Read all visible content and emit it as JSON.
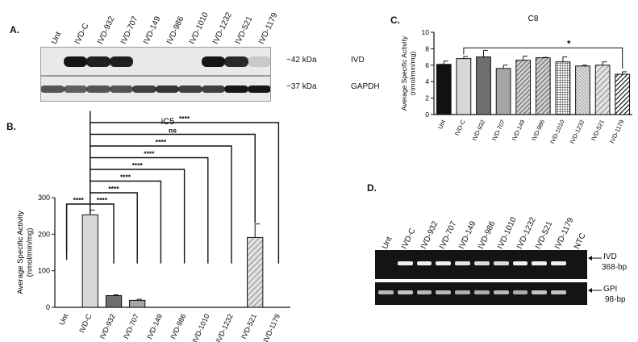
{
  "panelA": {
    "label": "A.",
    "lanes": [
      "Unt",
      "IVD-C",
      "IVD-932",
      "IVD-707",
      "IVD-149",
      "IVD-986",
      "IVD-1010",
      "IVD-1232",
      "IVD-521",
      "IVD-1179"
    ],
    "blots": [
      {
        "size": "~42 kDa",
        "protein": "IVD",
        "intensities": [
          0,
          1,
          0.95,
          0.95,
          0,
          0,
          0,
          1,
          0.9,
          0.15
        ]
      },
      {
        "size": "~37 kDa",
        "protein": "GAPDH",
        "intensities": [
          0.7,
          0.65,
          0.7,
          0.7,
          0.8,
          0.85,
          0.8,
          0.8,
          1,
          1
        ]
      }
    ]
  },
  "panelB": {
    "label": "B.",
    "chart_data": {
      "type": "bar",
      "title": "iC5",
      "ylabel": "Average Specific Activity\n(nmol/min/mg)",
      "ylim": [
        0,
        300
      ],
      "yticks": [
        0,
        100,
        200,
        300
      ],
      "categories": [
        "Unt",
        "IVD-C",
        "IVD-932",
        "IVD-707",
        "IVD-149",
        "IVD-986",
        "IVD-1010",
        "IVD-1232",
        "IVD-521",
        "IVD-1179"
      ],
      "values": [
        0,
        253,
        32,
        19,
        0,
        0,
        0,
        0,
        191,
        0
      ],
      "errors": [
        0,
        13,
        2,
        3,
        0,
        0,
        0,
        0,
        37,
        0
      ],
      "fills": [
        "#d8d8d8",
        "#d8d8d8",
        "#6e6e6e",
        "#a6a6a6",
        "#d8d8d8",
        "#d8d8d8",
        "#d8d8d8",
        "#d8d8d8",
        "hatch",
        "#d8d8d8"
      ],
      "significance": [
        {
          "from": 0,
          "to": 1,
          "label": "****"
        },
        {
          "from": 1,
          "to": 2,
          "label": "****"
        },
        {
          "from": 1,
          "to": 3,
          "label": "****"
        },
        {
          "from": 1,
          "to": 4,
          "label": "****"
        },
        {
          "from": 1,
          "to": 5,
          "label": "****"
        },
        {
          "from": 1,
          "to": 6,
          "label": "****"
        },
        {
          "from": 1,
          "to": 7,
          "label": "****"
        },
        {
          "from": 1,
          "to": 8,
          "label": "ns"
        },
        {
          "from": 1,
          "to": 9,
          "label": "****"
        }
      ]
    }
  },
  "panelC": {
    "label": "C.",
    "chart_data": {
      "type": "bar",
      "title": "C8",
      "ylabel": "Average Specific Activity\n(nmol/min/mg)",
      "ylim": [
        0,
        10
      ],
      "yticks": [
        0,
        2,
        4,
        6,
        8,
        10
      ],
      "categories": [
        "Unt",
        "IVD-C",
        "IVD-932",
        "IVD-707",
        "IVD-149",
        "IVD-986",
        "IVD-1010",
        "IVD-1232",
        "IVD-521",
        "IVD-1179"
      ],
      "values": [
        6.1,
        6.8,
        7.0,
        5.6,
        6.6,
        6.9,
        6.4,
        5.9,
        6.0,
        4.9
      ],
      "errors": [
        0.4,
        0.25,
        0.8,
        0.4,
        0.5,
        0.05,
        0.6,
        0.1,
        0.4,
        0.3
      ],
      "fills": [
        "#111111",
        "#d8d8d8",
        "#6e6e6e",
        "#a6a6a6",
        "hatch-dark",
        "hatch-dark",
        "grid",
        "hatch-fine",
        "hatch",
        "hatch-black"
      ],
      "significance": [
        {
          "from": 1,
          "to": 9,
          "label": "*"
        }
      ]
    }
  },
  "panelD": {
    "label": "D.",
    "lanes": [
      "Unt",
      "IVD-C",
      "IVD-932",
      "IVD-707",
      "IVD-149",
      "IVD-986",
      "IVD-1010",
      "IVD-1232",
      "IVD-521",
      "IVD-1179",
      "NTC"
    ],
    "gels": [
      {
        "name": "IVD",
        "size": "368-bp",
        "intensities": [
          0,
          1,
          1,
          1,
          0.95,
          0.9,
          0.9,
          1,
          1,
          1,
          0
        ]
      },
      {
        "name": "GPI",
        "size": "98-bp",
        "intensities": [
          0.75,
          0.8,
          0.75,
          0.75,
          0.7,
          0.7,
          0.75,
          0.7,
          0.8,
          0.8,
          0
        ]
      }
    ]
  }
}
